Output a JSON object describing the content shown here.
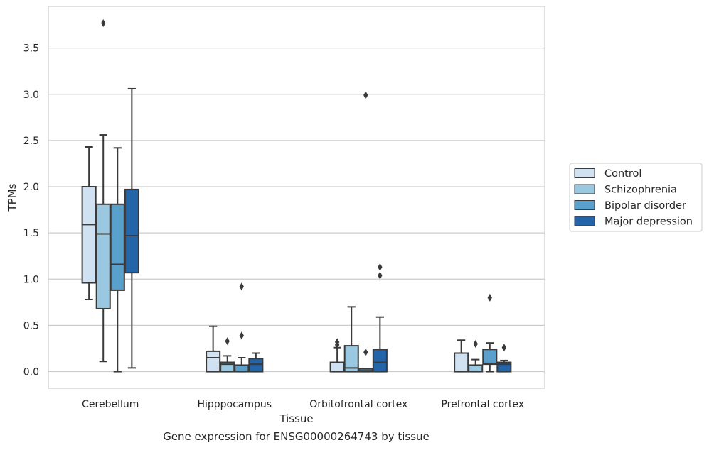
{
  "caption": "Gene expression for ENSG00000264743 by tissue",
  "chart_data": {
    "type": "box",
    "xlabel": "Tissue",
    "ylabel": "TPMs",
    "ylim": [
      -0.18,
      3.95
    ],
    "yticks": [
      "0.0",
      "0.5",
      "1.0",
      "1.5",
      "2.0",
      "2.5",
      "3.0",
      "3.5"
    ],
    "grid": true,
    "legend_position": "right",
    "categories": [
      "Cerebellum",
      "Hipppocampus",
      "Orbitofrontal cortex",
      "Prefrontal cortex"
    ],
    "series": [
      {
        "name": "Control",
        "color": "#d0e2f2",
        "boxes": [
          {
            "whisker_low": 0.78,
            "q1": 0.96,
            "median": 1.59,
            "q3": 2.0,
            "whisker_high": 2.43,
            "outliers": []
          },
          {
            "whisker_low": 0.0,
            "q1": 0.0,
            "median": 0.15,
            "q3": 0.22,
            "whisker_high": 0.49,
            "outliers": []
          },
          {
            "whisker_low": 0.0,
            "q1": 0.0,
            "median": 0.0,
            "q3": 0.1,
            "whisker_high": 0.26,
            "outliers": [
              0.29,
              0.32
            ]
          },
          {
            "whisker_low": 0.0,
            "q1": 0.0,
            "median": 0.0,
            "q3": 0.2,
            "whisker_high": 0.34,
            "outliers": []
          }
        ]
      },
      {
        "name": "Schizophrenia",
        "color": "#9ac8e0",
        "boxes": [
          {
            "whisker_low": 0.11,
            "q1": 0.68,
            "median": 1.49,
            "q3": 1.81,
            "whisker_high": 2.56,
            "outliers": [
              3.77
            ]
          },
          {
            "whisker_low": 0.0,
            "q1": 0.0,
            "median": 0.08,
            "q3": 0.1,
            "whisker_high": 0.17,
            "outliers": [
              0.33
            ]
          },
          {
            "whisker_low": 0.0,
            "q1": 0.0,
            "median": 0.04,
            "q3": 0.28,
            "whisker_high": 0.7,
            "outliers": []
          },
          {
            "whisker_low": 0.0,
            "q1": 0.0,
            "median": 0.0,
            "q3": 0.07,
            "whisker_high": 0.13,
            "outliers": [
              0.3
            ]
          }
        ]
      },
      {
        "name": "Bipolar disorder",
        "color": "#5aa0cd",
        "boxes": [
          {
            "whisker_low": 0.0,
            "q1": 0.88,
            "median": 1.16,
            "q3": 1.81,
            "whisker_high": 2.42,
            "outliers": []
          },
          {
            "whisker_low": 0.0,
            "q1": 0.0,
            "median": 0.0,
            "q3": 0.07,
            "whisker_high": 0.15,
            "outliers": [
              0.39,
              0.92
            ]
          },
          {
            "whisker_low": 0.0,
            "q1": 0.0,
            "median": 0.01,
            "q3": 0.03,
            "whisker_high": 0.03,
            "outliers": [
              0.21,
              2.99
            ]
          },
          {
            "whisker_low": 0.0,
            "q1": 0.08,
            "median": 0.09,
            "q3": 0.24,
            "whisker_high": 0.31,
            "outliers": [
              0.8
            ]
          }
        ]
      },
      {
        "name": "Major depression",
        "color": "#2464a9",
        "boxes": [
          {
            "whisker_low": 0.04,
            "q1": 1.07,
            "median": 1.47,
            "q3": 1.97,
            "whisker_high": 3.06,
            "outliers": []
          },
          {
            "whisker_low": 0.0,
            "q1": 0.0,
            "median": 0.08,
            "q3": 0.14,
            "whisker_high": 0.2,
            "outliers": []
          },
          {
            "whisker_low": 0.0,
            "q1": 0.0,
            "median": 0.1,
            "q3": 0.24,
            "whisker_high": 0.59,
            "outliers": [
              1.04,
              1.13
            ]
          },
          {
            "whisker_low": 0.0,
            "q1": 0.0,
            "median": 0.08,
            "q3": 0.1,
            "whisker_high": 0.12,
            "outliers": [
              0.26
            ]
          }
        ]
      }
    ]
  }
}
